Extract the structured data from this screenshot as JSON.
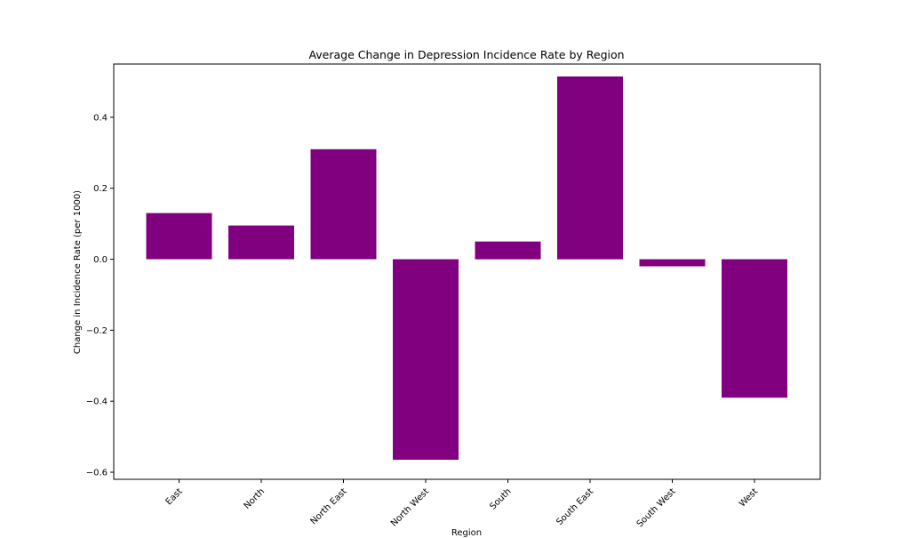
{
  "chart_data": {
    "type": "bar",
    "title": "Average Change in Depression Incidence Rate by Region",
    "xlabel": "Region",
    "ylabel": "Change in Incidence Rate (per 1000)",
    "categories": [
      "East",
      "North",
      "North East",
      "North West",
      "South",
      "South East",
      "South West",
      "West"
    ],
    "values": [
      0.13,
      0.095,
      0.31,
      -0.565,
      0.05,
      0.515,
      -0.02,
      -0.39
    ],
    "ylim": [
      -0.62,
      0.55
    ],
    "yticks": [
      -0.6,
      -0.4,
      -0.2,
      0.0,
      0.2,
      0.4
    ],
    "ytick_labels": [
      "−0.6",
      "−0.4",
      "−0.2",
      "0.0",
      "0.2",
      "0.4"
    ],
    "bar_color": "#800080",
    "grid": false
  }
}
